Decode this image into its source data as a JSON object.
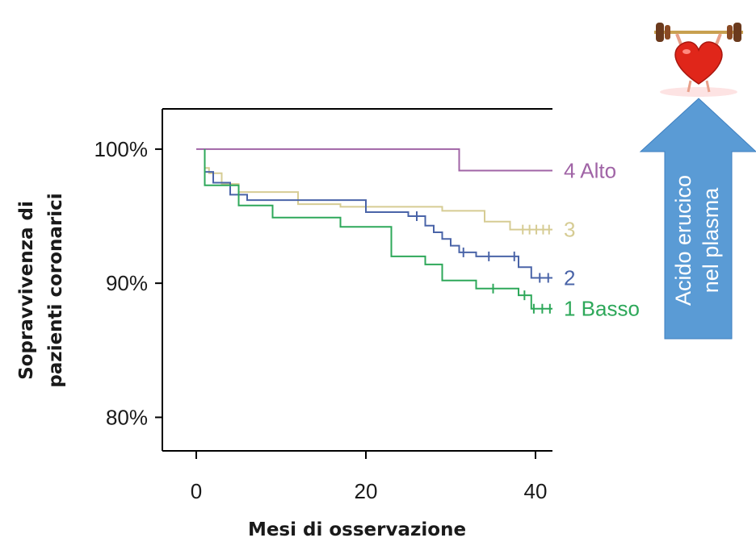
{
  "chart_data": {
    "type": "line",
    "xlabel": "Mesi di osservazione",
    "ylabel_lines": [
      "Sopravvivenza di",
      "pazienti coronarici"
    ],
    "x_ticks": [
      0,
      20,
      40
    ],
    "x_tick_labels": [
      "0",
      "20",
      "40"
    ],
    "y_ticks": [
      80,
      90,
      100
    ],
    "y_tick_labels": [
      "80%",
      "90%",
      "100%"
    ],
    "xlim": [
      -4,
      42
    ],
    "ylim": [
      77.5,
      103
    ],
    "series": [
      {
        "name": "4 Alto",
        "color": "#a064a6",
        "x": [
          0,
          31,
          31,
          42
        ],
        "y": [
          100,
          100,
          98.4,
          98.4
        ],
        "censored_x": []
      },
      {
        "name": "3",
        "color": "#d6cc94",
        "x": [
          1,
          1,
          1.5,
          1.5,
          3,
          3,
          5,
          5,
          12,
          12,
          17,
          17,
          29,
          29,
          34,
          34,
          37,
          37,
          42
        ],
        "y": [
          100,
          98.6,
          98.6,
          98.2,
          98.2,
          97.4,
          97.4,
          96.8,
          96.8,
          95.9,
          95.9,
          95.7,
          95.7,
          95.4,
          95.4,
          94.6,
          94.6,
          94.0,
          94.0
        ],
        "censored_x": [
          38.5,
          39.3,
          40.1,
          40.9,
          41.6
        ]
      },
      {
        "name": "2",
        "color": "#4a64a8",
        "x": [
          1,
          1,
          2,
          2,
          4,
          4,
          6,
          6,
          20,
          20,
          25,
          25,
          27,
          27,
          28,
          28,
          29,
          29,
          30,
          30,
          31,
          31,
          33,
          33,
          38,
          38,
          39.5,
          39.5,
          42
        ],
        "y": [
          100,
          98.3,
          98.3,
          97.5,
          97.5,
          96.6,
          96.6,
          96.2,
          96.2,
          95.3,
          95.3,
          95.0,
          95.0,
          94.3,
          94.3,
          93.8,
          93.8,
          93.3,
          93.3,
          92.8,
          92.8,
          92.3,
          92.3,
          92.0,
          92.0,
          91.2,
          91.2,
          90.4,
          90.4
        ],
        "censored_x": [
          26,
          31.5,
          34.5,
          37.5,
          40.5,
          41.5
        ]
      },
      {
        "name": "1 Basso",
        "color": "#2ea85a",
        "x": [
          1,
          1,
          5,
          5,
          9,
          9,
          17,
          17,
          23,
          23,
          27,
          27,
          29,
          29,
          33,
          33,
          38,
          38,
          39.5,
          39.5,
          42
        ],
        "y": [
          100,
          97.3,
          97.3,
          95.8,
          95.8,
          94.9,
          94.9,
          94.2,
          94.2,
          92.0,
          92.0,
          91.4,
          91.4,
          90.2,
          90.2,
          89.6,
          89.6,
          89.1,
          89.1,
          88.1,
          88.1
        ],
        "censored_x": [
          35,
          38.7,
          39.8,
          40.8,
          41.7
        ]
      }
    ],
    "grid": false,
    "legend": "inline-right"
  },
  "arrow": {
    "lines": [
      "Acido erucico",
      "nel plasma"
    ],
    "color": "#5a9bd5"
  },
  "logo": {
    "name": "heart-weightlifter-icon",
    "colors": {
      "heart": "#e0261a",
      "weights": "#6b3a1d",
      "bar": "#c8a050"
    }
  }
}
